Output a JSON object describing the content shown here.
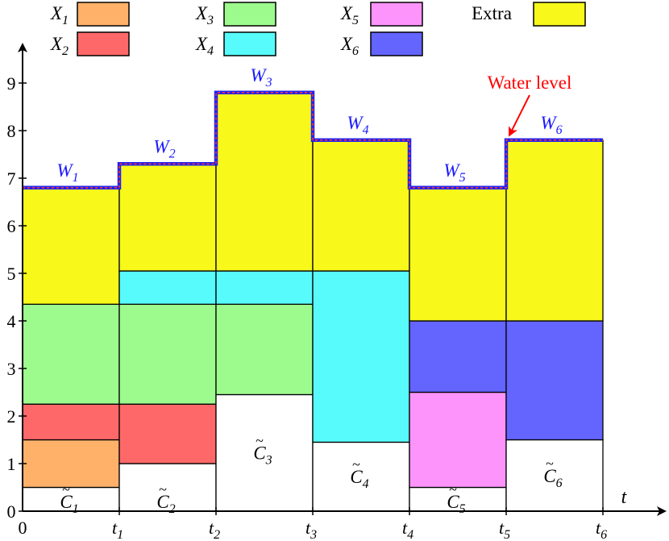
{
  "chart_data": {
    "type": "bar",
    "xlabel": "t",
    "x_tick_labels": [
      "0",
      "t1",
      "t2",
      "t3",
      "t4",
      "t5",
      "t6"
    ],
    "y_tick_labels": [
      "0",
      "1",
      "2",
      "3",
      "4",
      "5",
      "6",
      "7",
      "8",
      "9"
    ],
    "ylim": [
      0,
      9.5
    ],
    "intervals": [
      {
        "water_label": "W1",
        "water_level": 6.8,
        "cap_label": "C1",
        "cap_value": 0.5,
        "segments": [
          {
            "series": "X1",
            "from": 0.5,
            "to": 1.5
          },
          {
            "series": "X2",
            "from": 1.5,
            "to": 2.25
          },
          {
            "series": "X3",
            "from": 2.25,
            "to": 4.35
          },
          {
            "series": "Extra",
            "from": 4.35,
            "to": 6.8
          }
        ]
      },
      {
        "water_label": "W2",
        "water_level": 7.3,
        "cap_label": "C2",
        "cap_value": 1.0,
        "segments": [
          {
            "series": "X2",
            "from": 1.0,
            "to": 2.25
          },
          {
            "series": "X3",
            "from": 2.25,
            "to": 4.35
          },
          {
            "series": "X4",
            "from": 4.35,
            "to": 5.05
          },
          {
            "series": "Extra",
            "from": 5.05,
            "to": 7.3
          }
        ]
      },
      {
        "water_label": "W3",
        "water_level": 8.8,
        "cap_label": "C3",
        "cap_value": 2.45,
        "segments": [
          {
            "series": "X3",
            "from": 2.45,
            "to": 4.35
          },
          {
            "series": "X4",
            "from": 4.35,
            "to": 5.05
          },
          {
            "series": "Extra",
            "from": 5.05,
            "to": 8.8
          }
        ]
      },
      {
        "water_label": "W4",
        "water_level": 7.8,
        "cap_label": "C4",
        "cap_value": 1.45,
        "segments": [
          {
            "series": "X4",
            "from": 1.45,
            "to": 5.05
          },
          {
            "series": "Extra",
            "from": 5.05,
            "to": 7.8
          }
        ]
      },
      {
        "water_label": "W5",
        "water_level": 6.8,
        "cap_label": "C5",
        "cap_value": 0.5,
        "segments": [
          {
            "series": "X5",
            "from": 0.5,
            "to": 2.5
          },
          {
            "series": "X6",
            "from": 2.5,
            "to": 4.0
          },
          {
            "series": "Extra",
            "from": 4.0,
            "to": 6.8
          }
        ]
      },
      {
        "water_label": "W6",
        "water_level": 7.8,
        "cap_label": "C6",
        "cap_value": 1.5,
        "segments": [
          {
            "series": "X6",
            "from": 1.5,
            "to": 4.0
          },
          {
            "series": "Extra",
            "from": 4.0,
            "to": 7.8
          }
        ]
      }
    ],
    "legend": [
      {
        "series": "X1",
        "label": "X1",
        "color": "#ffb16a"
      },
      {
        "series": "X2",
        "label": "X2",
        "color": "#ff6868"
      },
      {
        "series": "X3",
        "label": "X3",
        "color": "#9dfb8d"
      },
      {
        "series": "X4",
        "label": "X4",
        "color": "#58fbfb"
      },
      {
        "series": "X5",
        "label": "X5",
        "color": "#fc94fc"
      },
      {
        "series": "X6",
        "label": "X6",
        "color": "#6464ff"
      },
      {
        "series": "Extra",
        "label": "Extra",
        "color": "#f8f81a"
      }
    ],
    "annotation": "Water level",
    "colors": {
      "water_line_outer": "#2222ee",
      "water_line_inner": "#ff3333",
      "annotation": "#ff0000",
      "w_label": "#1a1aff"
    },
    "legend_placement": "top",
    "grid": false
  }
}
